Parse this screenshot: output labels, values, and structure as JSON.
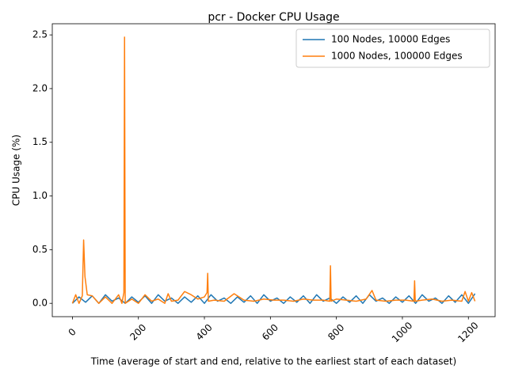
{
  "chart_data": {
    "type": "line",
    "title": "pcr - Docker CPU Usage",
    "x_label": "Time (average of start and end, relative to the earliest start of each dataset)",
    "y_label": "CPU Usage (%)",
    "xlim": [
      -61,
      1281
    ],
    "ylim": [
      -0.124,
      2.604
    ],
    "xticks": [
      0,
      200,
      400,
      600,
      800,
      1000,
      1200
    ],
    "yticks": [
      {
        "value": 0,
        "label": "0.0"
      },
      0.5,
      {
        "value": 1,
        "label": "1.0"
      },
      1.5,
      {
        "value": 2,
        "label": "2.0"
      },
      2.5
    ],
    "grid": false,
    "legend": "upper-right",
    "series": [
      {
        "name": "100 Nodes, 10000 Edges",
        "color": "#1f77b4",
        "x": [
          0,
          20,
          40,
          60,
          80,
          100,
          120,
          140,
          160,
          180,
          200,
          220,
          240,
          260,
          280,
          300,
          320,
          340,
          360,
          380,
          400,
          420,
          440,
          460,
          480,
          500,
          520,
          540,
          560,
          580,
          600,
          620,
          640,
          660,
          680,
          700,
          720,
          740,
          760,
          780,
          800,
          820,
          840,
          860,
          880,
          900,
          920,
          940,
          960,
          980,
          1000,
          1020,
          1040,
          1060,
          1080,
          1100,
          1120,
          1140,
          1160,
          1180,
          1200,
          1220
        ],
        "values": [
          0,
          0.06,
          0.01,
          0.07,
          0,
          0.08,
          0.02,
          0.05,
          0,
          0.06,
          0.01,
          0.07,
          0,
          0.08,
          0.02,
          0.05,
          0,
          0.06,
          0.01,
          0.07,
          0,
          0.08,
          0.02,
          0.05,
          0,
          0.06,
          0.01,
          0.07,
          0,
          0.08,
          0.02,
          0.05,
          0,
          0.06,
          0.01,
          0.07,
          0,
          0.08,
          0.02,
          0.05,
          0,
          0.06,
          0.01,
          0.07,
          0,
          0.08,
          0.02,
          0.05,
          0,
          0.06,
          0.01,
          0.07,
          0,
          0.08,
          0.02,
          0.05,
          0,
          0.07,
          0.01,
          0.08,
          0,
          0.09
        ]
      },
      {
        "name": "1000 Nodes, 100000 Edges",
        "color": "#ff7f0e",
        "x": [
          0,
          10,
          20,
          30,
          34,
          38,
          45,
          60,
          80,
          100,
          120,
          140,
          150,
          156,
          158,
          160,
          180,
          200,
          220,
          240,
          260,
          280,
          290,
          300,
          320,
          340,
          360,
          380,
          400,
          408,
          410,
          412,
          430,
          460,
          490,
          520,
          550,
          580,
          610,
          640,
          670,
          700,
          730,
          760,
          780,
          782,
          784,
          800,
          830,
          860,
          890,
          908,
          920,
          950,
          980,
          1010,
          1035,
          1037,
          1039,
          1060,
          1090,
          1120,
          1150,
          1180,
          1190,
          1200,
          1210,
          1220
        ],
        "values": [
          0,
          0.08,
          0,
          0.07,
          0.59,
          0.25,
          0.08,
          0.07,
          0,
          0.06,
          0,
          0.08,
          0,
          0.1,
          2.48,
          0,
          0.04,
          0,
          0.08,
          0.02,
          0.04,
          0,
          0.09,
          0.02,
          0.03,
          0.11,
          0.08,
          0.04,
          0.06,
          0.1,
          0.28,
          0.02,
          0.03,
          0.02,
          0.09,
          0.03,
          0.02,
          0.04,
          0.03,
          0.03,
          0.02,
          0.04,
          0.03,
          0.03,
          0.02,
          0.35,
          0.02,
          0.04,
          0.03,
          0.02,
          0.04,
          0.12,
          0.03,
          0.02,
          0.03,
          0.03,
          0.02,
          0.21,
          0.02,
          0.03,
          0.04,
          0.02,
          0.03,
          0.02,
          0.11,
          0.02,
          0.1,
          0.02
        ]
      }
    ]
  }
}
